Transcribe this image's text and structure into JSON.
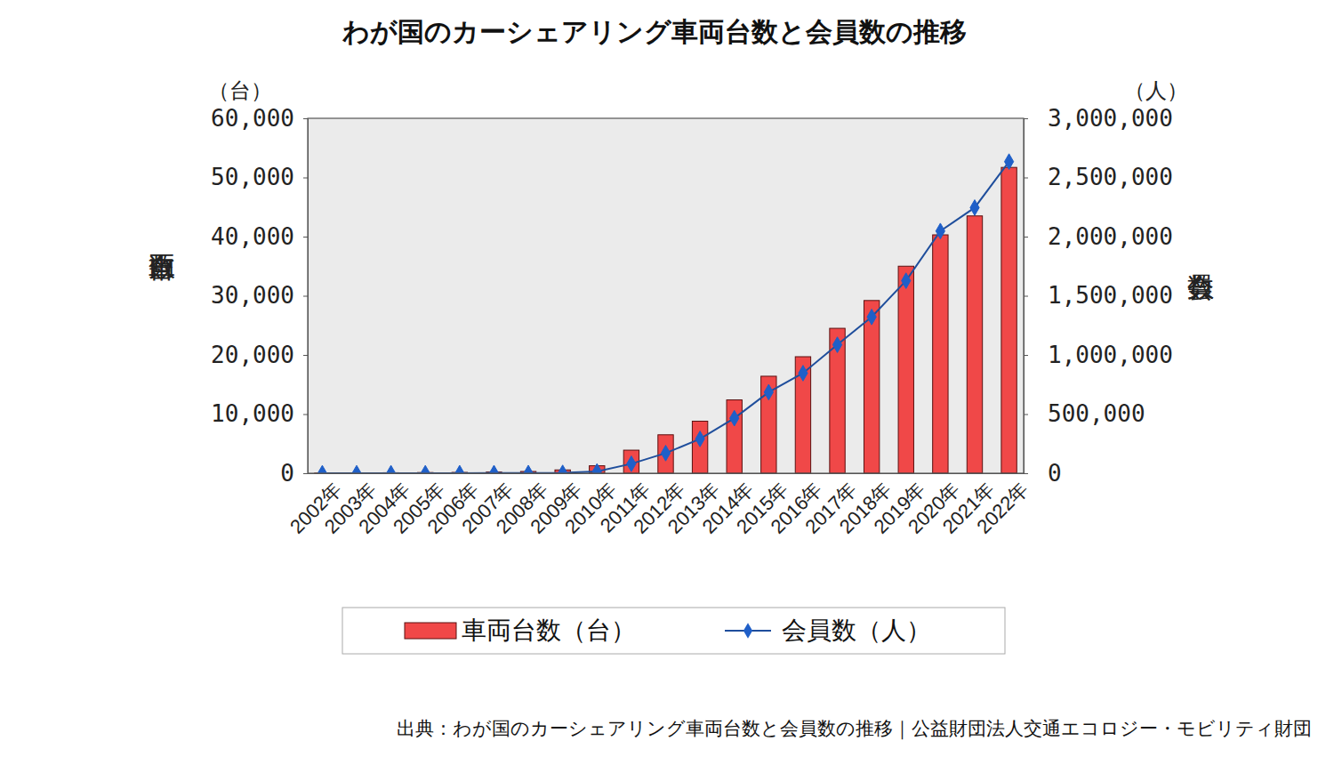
{
  "chart_data": {
    "type": "bar",
    "title": "わが国のカーシェアリング車両台数と会員数の推移",
    "source": "出典：わが国のカーシェアリング車両台数と会員数の推移｜公益財団法人交通エコロジー・モビリティ財団",
    "y_label": "車両台数",
    "y_unit": "（台）",
    "y2_label": "会員数",
    "y2_unit": "（人）",
    "categories": [
      "2002年",
      "2003年",
      "2004年",
      "2005年",
      "2006年",
      "2007年",
      "2008年",
      "2009年",
      "2010年",
      "2011年",
      "2012年",
      "2013年",
      "2014年",
      "2015年",
      "2016年",
      "2017年",
      "2018年",
      "2019年",
      "2020年",
      "2021年",
      "2022年"
    ],
    "series": [
      {
        "name": "車両台数（台）",
        "type": "bar",
        "color": "#f04848",
        "values": [
          21,
          40,
          86,
          118,
          143,
          200,
          300,
          563,
          1265,
          3900,
          6500,
          8800,
          12400,
          16400,
          19700,
          24500,
          29200,
          35000,
          40300,
          43500,
          51700
        ]
      },
      {
        "name": "会員数（人）",
        "type": "line",
        "axis": "y2",
        "color": "#1f4e9c",
        "marker": "diamond",
        "line_style": "solid",
        "values": [
          50,
          100,
          200,
          300,
          500,
          1000,
          1500,
          3000,
          15000,
          80000,
          170000,
          290000,
          465000,
          685000,
          846000,
          1086000,
          1321000,
          1627000,
          2047000,
          2245000,
          2634000
        ]
      }
    ],
    "ylim": [
      0,
      60000
    ],
    "yticks": [
      0,
      {
        "value": 10000,
        "label": "10,000"
      },
      {
        "value": 20000,
        "label": "20,000"
      },
      {
        "value": 30000,
        "label": "30,000"
      },
      {
        "value": 40000,
        "label": "40,000"
      },
      {
        "value": 50000,
        "label": "50,000"
      },
      {
        "value": 60000,
        "label": "60,000"
      }
    ],
    "y2lim": [
      0,
      3000000
    ],
    "y2ticks": [
      0,
      {
        "value": 500000,
        "label": "500,000"
      },
      {
        "value": 1000000,
        "label": "1,000,000"
      },
      {
        "value": 1500000,
        "label": "1,500,000"
      },
      {
        "value": 2000000,
        "label": "2,000,000"
      },
      {
        "value": 2500000,
        "label": "2,500,000"
      },
      {
        "value": 3000000,
        "label": "3,000,000"
      }
    ],
    "grid": false,
    "legend": "bottom"
  }
}
